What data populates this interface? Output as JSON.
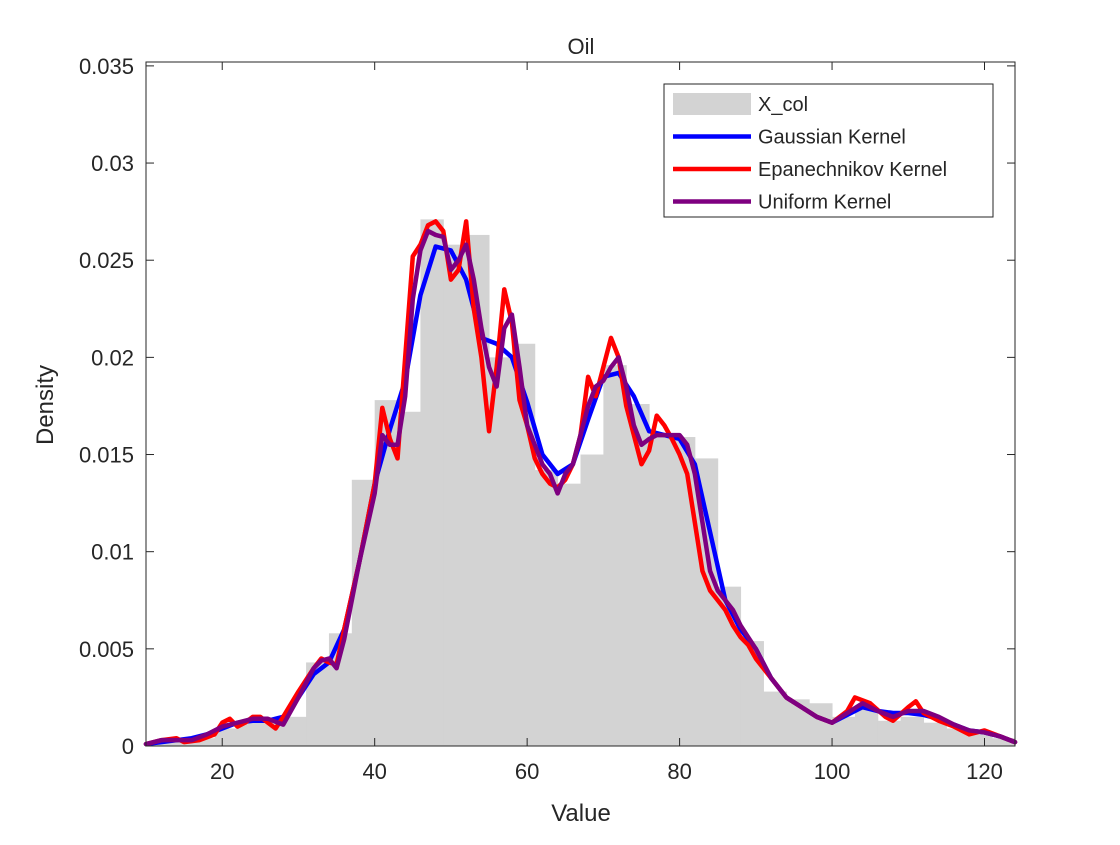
{
  "chart_data": {
    "type": "histogram-with-density-lines",
    "title": "Oil",
    "xlabel": "Value",
    "ylabel": "Density",
    "xlim": [
      10,
      124
    ],
    "ylim": [
      0,
      0.0352
    ],
    "x_ticks": [
      20,
      40,
      60,
      80,
      100,
      120
    ],
    "x_tick_labels": [
      "20",
      "40",
      "60",
      "80",
      "100",
      "120"
    ],
    "y_ticks": [
      0,
      0.005,
      0.01,
      0.015,
      0.02,
      0.025,
      0.03,
      0.035
    ],
    "y_tick_labels": [
      "0",
      "0.005",
      "0.01",
      "0.015",
      "0.02",
      "0.025",
      "0.03",
      "0.035"
    ],
    "grid": false,
    "legend_position": "top-right",
    "histogram": {
      "name": "X_col",
      "color": "#d3d3d3",
      "bin_edges": [
        10,
        13,
        16,
        19,
        22,
        25,
        28,
        31,
        34,
        37,
        40,
        43,
        46,
        49,
        52,
        55,
        58,
        61,
        64,
        67,
        70,
        73,
        76,
        79,
        82,
        85,
        88,
        91,
        94,
        97,
        100,
        103,
        106,
        109,
        112,
        115,
        118,
        121,
        124
      ],
      "values": [
        0.0002,
        0.0003,
        0.0004,
        0.0009,
        0.0012,
        0.0013,
        0.0015,
        0.0043,
        0.0058,
        0.0137,
        0.0178,
        0.0172,
        0.0271,
        0.0258,
        0.0263,
        0.02,
        0.0207,
        0.0142,
        0.0135,
        0.015,
        0.0196,
        0.0176,
        0.016,
        0.0159,
        0.0148,
        0.0082,
        0.0054,
        0.0028,
        0.0024,
        0.0022,
        0.0015,
        0.002,
        0.0013,
        0.0015,
        0.0012,
        0.0009,
        0.0007,
        0.0004
      ]
    },
    "series": [
      {
        "name": "Gaussian Kernel",
        "color": "#0000ff",
        "x": [
          10,
          12,
          14,
          16,
          18,
          20,
          22,
          24,
          26,
          28,
          30,
          32,
          34,
          36,
          38,
          40,
          42,
          44,
          46,
          48,
          50,
          52,
          54,
          56,
          58,
          60,
          62,
          64,
          66,
          68,
          70,
          72,
          74,
          76,
          78,
          80,
          82,
          84,
          86,
          88,
          90,
          92,
          94,
          96,
          98,
          100,
          102,
          104,
          106,
          108,
          110,
          112,
          114,
          116,
          118,
          120,
          122,
          124
        ],
        "y": [
          0.0001,
          0.0002,
          0.0003,
          0.0004,
          0.0006,
          0.0009,
          0.0012,
          0.0013,
          0.0013,
          0.0015,
          0.0025,
          0.0037,
          0.0043,
          0.006,
          0.0095,
          0.0135,
          0.0163,
          0.0188,
          0.0232,
          0.0257,
          0.0255,
          0.024,
          0.021,
          0.0207,
          0.02,
          0.0177,
          0.015,
          0.014,
          0.0145,
          0.0168,
          0.019,
          0.0192,
          0.018,
          0.0162,
          0.016,
          0.0158,
          0.0145,
          0.011,
          0.0075,
          0.006,
          0.005,
          0.0035,
          0.0025,
          0.002,
          0.0015,
          0.0012,
          0.0016,
          0.002,
          0.0018,
          0.0017,
          0.0017,
          0.0016,
          0.0014,
          0.0011,
          0.0008,
          0.0007,
          0.0005,
          0.0002
        ]
      },
      {
        "name": "Epanechnikov Kernel",
        "color": "#ff0000",
        "x": [
          10,
          12,
          14,
          15,
          17,
          19,
          20,
          21,
          22,
          23,
          24,
          25,
          26,
          27,
          28,
          30,
          32,
          33,
          34,
          35,
          36,
          38,
          40,
          41,
          42,
          43,
          44,
          45,
          46,
          47,
          48,
          49,
          50,
          51,
          52,
          53,
          54,
          55,
          56,
          57,
          58,
          59,
          60,
          61,
          62,
          63,
          64,
          65,
          66,
          67,
          68,
          69,
          70,
          71,
          72,
          73,
          74,
          75,
          76,
          77,
          78,
          79,
          80,
          81,
          82,
          83,
          84,
          85,
          86,
          87,
          88,
          89,
          90,
          92,
          94,
          96,
          98,
          100,
          102,
          103,
          105,
          107,
          108,
          110,
          111,
          112,
          114,
          116,
          118,
          120,
          122,
          124
        ],
        "y": [
          0.0001,
          0.0003,
          0.0004,
          0.0002,
          0.0003,
          0.0006,
          0.0012,
          0.0014,
          0.001,
          0.0012,
          0.0015,
          0.0015,
          0.0012,
          0.0009,
          0.0015,
          0.0028,
          0.004,
          0.0045,
          0.0043,
          0.0042,
          0.006,
          0.0095,
          0.0135,
          0.0174,
          0.0158,
          0.0148,
          0.02,
          0.0252,
          0.0258,
          0.0268,
          0.027,
          0.0265,
          0.024,
          0.0245,
          0.027,
          0.0225,
          0.02,
          0.0162,
          0.0195,
          0.0235,
          0.0218,
          0.0178,
          0.0165,
          0.0148,
          0.014,
          0.0135,
          0.0133,
          0.0137,
          0.0145,
          0.016,
          0.019,
          0.018,
          0.0195,
          0.021,
          0.02,
          0.0175,
          0.016,
          0.0145,
          0.0152,
          0.017,
          0.0165,
          0.0158,
          0.015,
          0.014,
          0.0115,
          0.009,
          0.008,
          0.0075,
          0.007,
          0.0062,
          0.0056,
          0.0052,
          0.0045,
          0.0035,
          0.0025,
          0.002,
          0.0015,
          0.0012,
          0.0018,
          0.0025,
          0.0022,
          0.0015,
          0.0013,
          0.002,
          0.0023,
          0.0017,
          0.0013,
          0.001,
          0.0006,
          0.0008,
          0.0005,
          0.0002
        ]
      },
      {
        "name": "Uniform Kernel",
        "color": "#7e0080",
        "x": [
          10,
          12,
          14,
          16,
          18,
          20,
          22,
          24,
          26,
          28,
          30,
          32,
          33,
          34,
          35,
          36,
          38,
          40,
          41,
          42,
          43,
          44,
          45,
          46,
          47,
          48,
          49,
          50,
          51,
          52,
          53,
          54,
          55,
          56,
          57,
          58,
          59,
          60,
          61,
          62,
          63,
          64,
          65,
          66,
          67,
          68,
          69,
          70,
          71,
          72,
          73,
          74,
          75,
          76,
          77,
          78,
          79,
          80,
          81,
          82,
          83,
          84,
          85,
          86,
          87,
          88,
          89,
          90,
          92,
          94,
          96,
          98,
          100,
          102,
          104,
          106,
          108,
          110,
          112,
          114,
          116,
          118,
          120,
          122,
          124
        ],
        "y": [
          0.0001,
          0.0003,
          0.0003,
          0.0003,
          0.0006,
          0.001,
          0.0012,
          0.0014,
          0.0014,
          0.0011,
          0.0025,
          0.004,
          0.0044,
          0.0045,
          0.004,
          0.0055,
          0.0095,
          0.013,
          0.016,
          0.0155,
          0.0155,
          0.018,
          0.023,
          0.0255,
          0.0265,
          0.0263,
          0.0262,
          0.0245,
          0.025,
          0.0258,
          0.024,
          0.0215,
          0.0195,
          0.0185,
          0.0215,
          0.0222,
          0.0195,
          0.0165,
          0.0155,
          0.0145,
          0.014,
          0.013,
          0.014,
          0.0145,
          0.016,
          0.0175,
          0.0185,
          0.0188,
          0.0195,
          0.02,
          0.0185,
          0.0165,
          0.0155,
          0.0158,
          0.016,
          0.016,
          0.016,
          0.016,
          0.0155,
          0.014,
          0.0115,
          0.009,
          0.008,
          0.0075,
          0.007,
          0.0062,
          0.0056,
          0.005,
          0.0035,
          0.0025,
          0.002,
          0.0015,
          0.0012,
          0.0017,
          0.0022,
          0.0018,
          0.0015,
          0.0018,
          0.0018,
          0.0015,
          0.0011,
          0.0008,
          0.0007,
          0.0005,
          0.0002
        ]
      }
    ]
  }
}
